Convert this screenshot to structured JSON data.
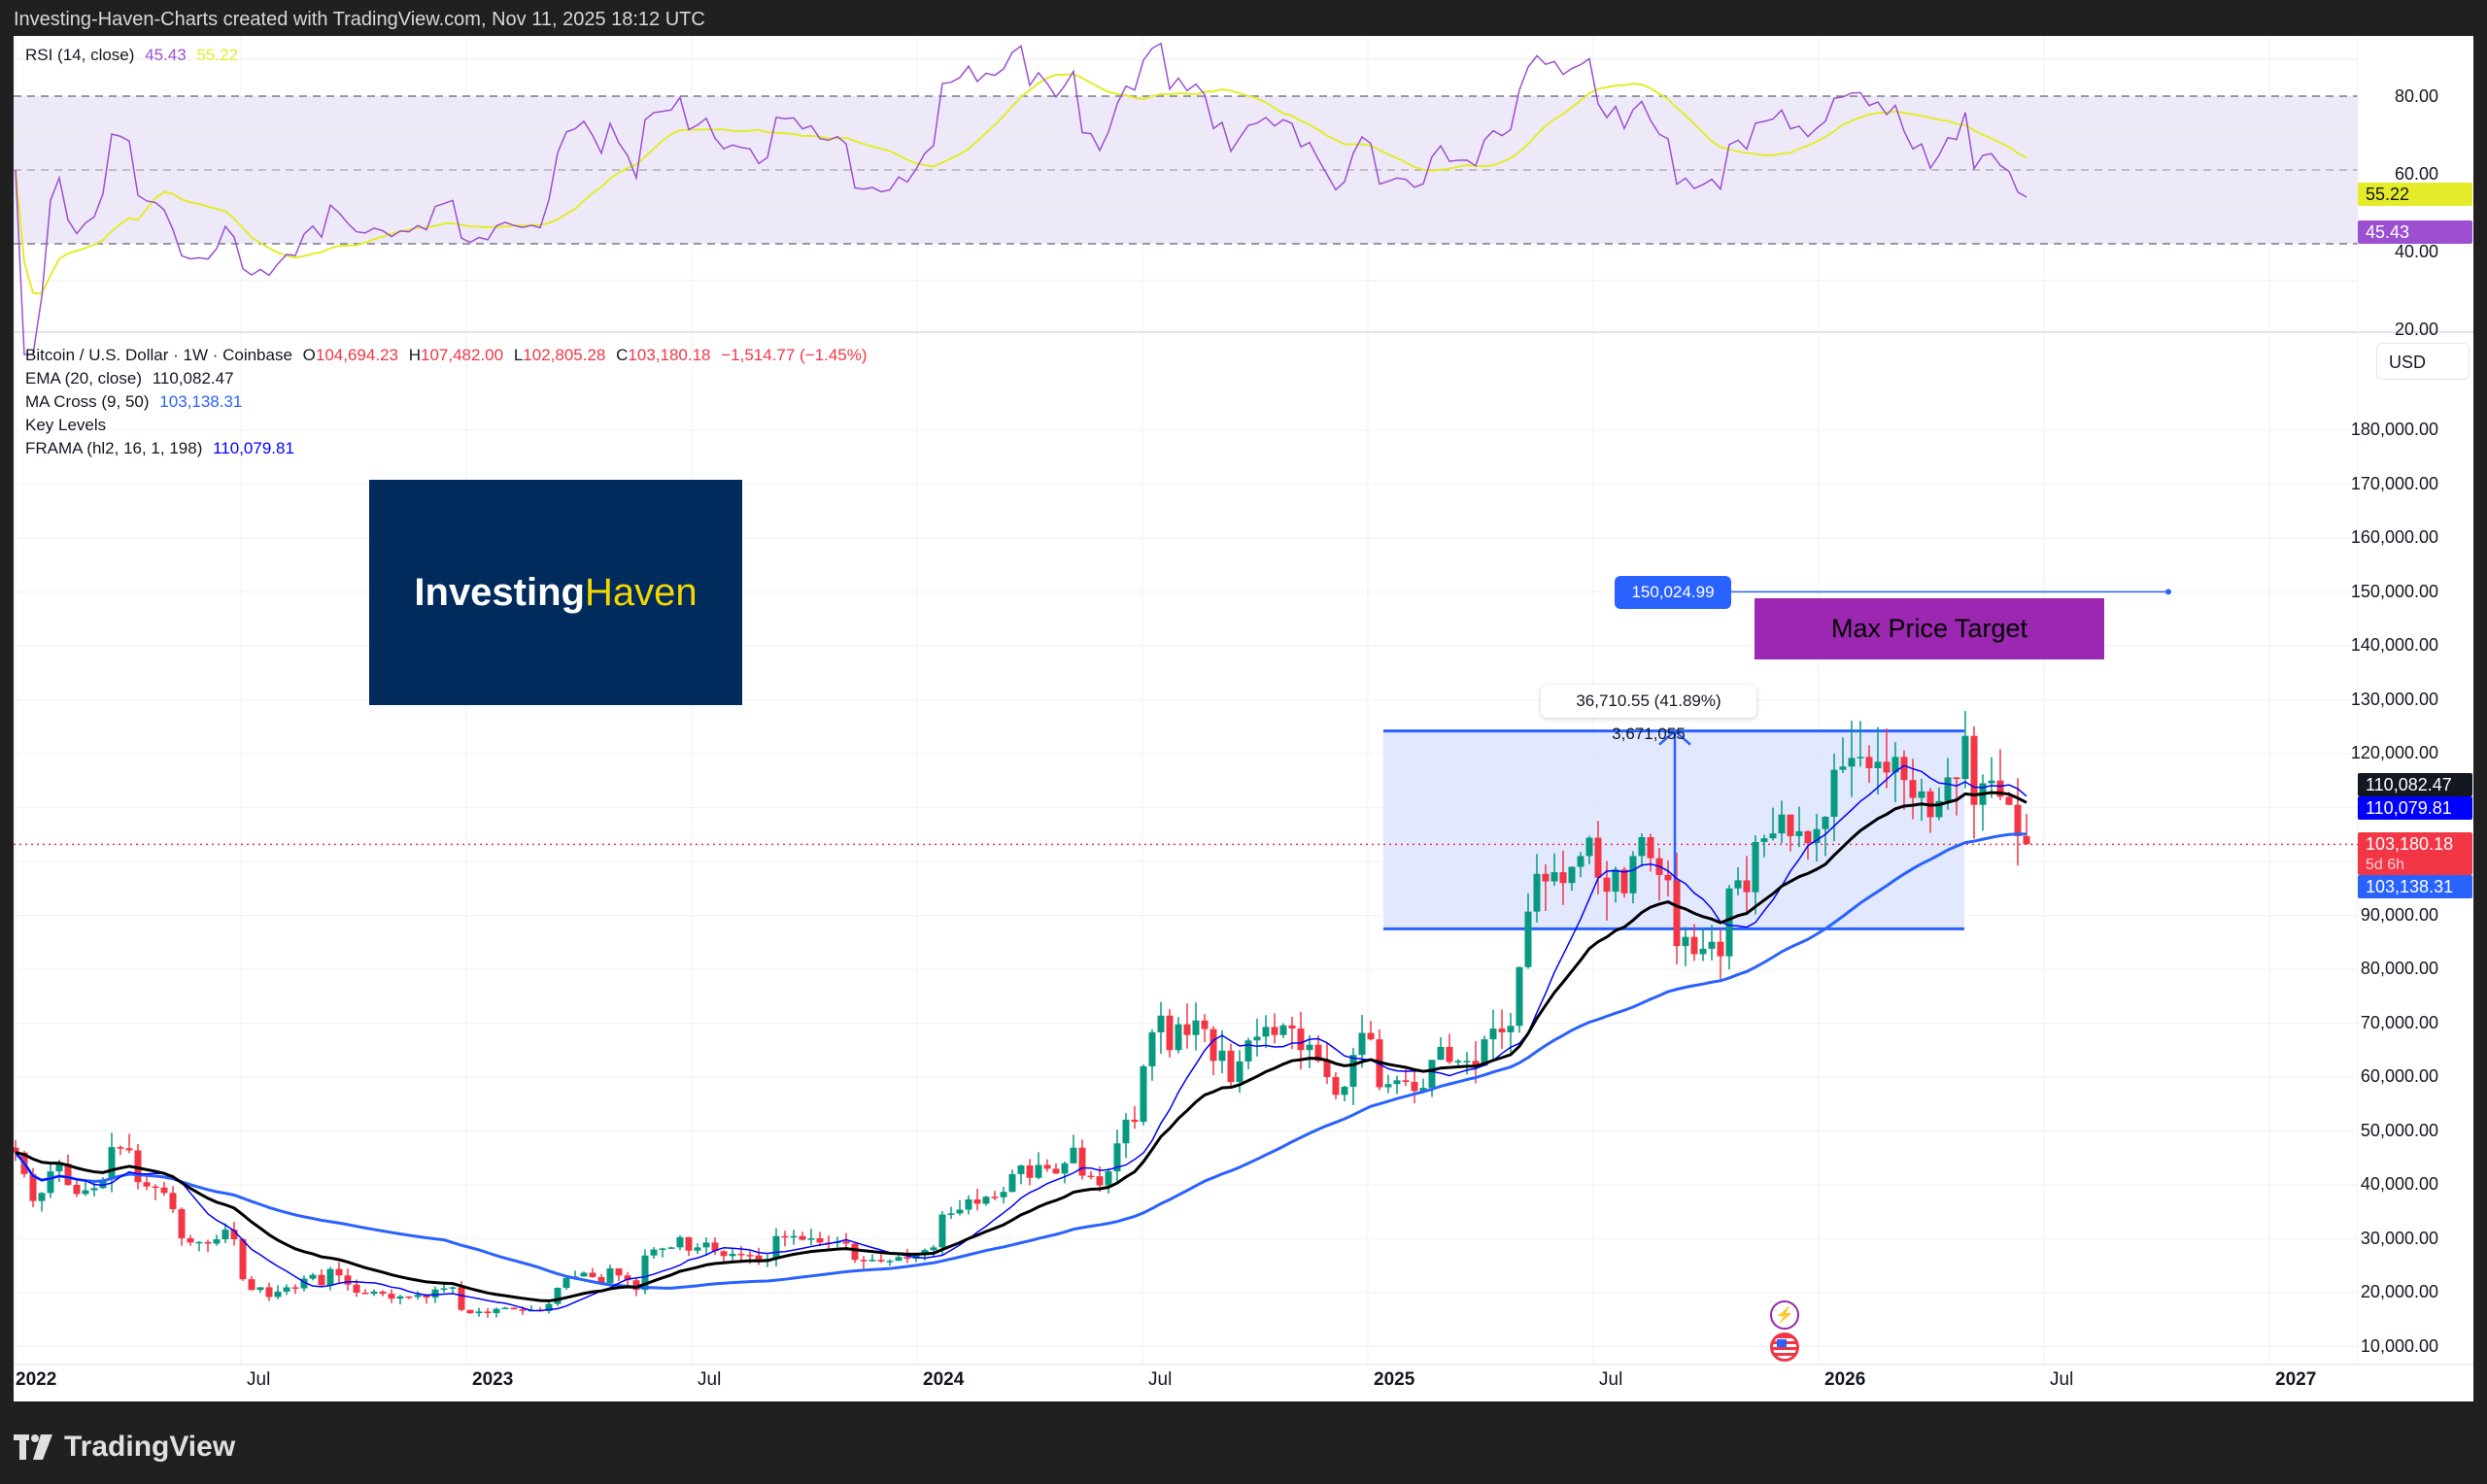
{
  "header": {
    "caption": "Investing-Haven-Charts created with TradingView.com, Nov 11, 2025 18:12 UTC"
  },
  "rsi_pane": {
    "legend_name": "RSI (14, close)",
    "rsi_value": "45.43",
    "rsi_ma_value": "55.22",
    "axis_ticks": [
      "80.00",
      "60.00",
      "40.00",
      "20.00"
    ],
    "tag_rsi": "45.43",
    "tag_ma": "55.22",
    "colors": {
      "rsi": "#9c4fd1",
      "ma": "#e4ec2a",
      "band": "#eee9f8"
    }
  },
  "price_pane": {
    "symbol": "Bitcoin / U.S. Dollar · 1W · Coinbase",
    "ohlc": {
      "o_label": "O",
      "o": "104,694.23",
      "h_label": "H",
      "h": "107,482.00",
      "l_label": "L",
      "l": "102,805.28",
      "c_label": "C",
      "c": "103,180.18",
      "change": "−1,514.77 (−1.45%)"
    },
    "indicators": [
      {
        "name": "EMA (20, close)",
        "value": "110,082.47"
      },
      {
        "name": "MA Cross (9, 50)",
        "value": "103,138.31"
      },
      {
        "name": "Key Levels",
        "value": ""
      },
      {
        "name": "FRAMA (hl2, 16, 1, 198)",
        "value": "110,079.81"
      }
    ],
    "currency": "USD",
    "axis_ticks": [
      "180,000.00",
      "170,000.00",
      "160,000.00",
      "150,000.00",
      "140,000.00",
      "130,000.00",
      "120,000.00",
      "90,000.00",
      "80,000.00",
      "70,000.00",
      "60,000.00",
      "50,000.00",
      "40,000.00",
      "30,000.00",
      "20,000.00",
      "10,000.00"
    ],
    "tags": {
      "ema": "110,082.47",
      "frama": "110,079.81",
      "last_price": "103,180.18",
      "countdown": "5d 6h",
      "ma_cross": "103,138.31"
    },
    "colors": {
      "up": "#089981",
      "down": "#f23645",
      "ema": "#000000",
      "ma50": "#2962ff",
      "frama": "#0000ff",
      "measure_fill": "#dfe6fd"
    }
  },
  "time_axis": [
    {
      "label": "2022",
      "year": true
    },
    {
      "label": "Jul",
      "year": false
    },
    {
      "label": "2023",
      "year": true
    },
    {
      "label": "Jul",
      "year": false
    },
    {
      "label": "2024",
      "year": true
    },
    {
      "label": "Jul",
      "year": false
    },
    {
      "label": "2025",
      "year": true
    },
    {
      "label": "Jul",
      "year": false
    },
    {
      "label": "2026",
      "year": true
    },
    {
      "label": "Jul",
      "year": false
    },
    {
      "label": "2027",
      "year": true
    }
  ],
  "annotations": {
    "logo_part1": "Investing",
    "logo_part2": "Haven",
    "target_price_label": "150,024.99",
    "max_price_target": "Max Price Target",
    "measure_label": "36,710.55 (41.89%) 3,671,055"
  },
  "footer": {
    "brand": "TradingView"
  },
  "chart_data": {
    "type": "candlestick",
    "title": "Bitcoin / U.S. Dollar · 1W · Coinbase",
    "xlabel": "",
    "ylabel": "USD",
    "ylim": [
      5000,
      185000
    ],
    "x_start": "2022-01-03",
    "interval": "1W",
    "closes": [
      46000,
      42000,
      37000,
      38500,
      42500,
      43900,
      40000,
      38300,
      39000,
      39400,
      41000,
      47000,
      46800,
      46400,
      40500,
      39700,
      39500,
      38500,
      35500,
      30100,
      29300,
      29400,
      29100,
      29900,
      31700,
      29900,
      22500,
      20500,
      21000,
      19200,
      20200,
      21000,
      20800,
      22600,
      23300,
      21400,
      24400,
      23200,
      21500,
      20000,
      19800,
      20200,
      19800,
      18900,
      19300,
      19200,
      19600,
      19100,
      20600,
      20800,
      21000,
      16800,
      16200,
      16500,
      16200,
      17000,
      17200,
      16900,
      16700,
      16800,
      16600,
      17900,
      20900,
      22700,
      23000,
      23700,
      22900,
      21800,
      24500,
      23200,
      22300,
      20500,
      26900,
      28000,
      28200,
      28400,
      30300,
      27800,
      28400,
      29300,
      27700,
      26800,
      27200,
      27000,
      26900,
      25800,
      26300,
      30500,
      30400,
      30500,
      29800,
      30100,
      29300,
      29200,
      29500,
      29100,
      26100,
      26000,
      26100,
      25800,
      25900,
      26600,
      26300,
      27000,
      27900,
      28400,
      34500,
      34700,
      35400,
      37300,
      36500,
      37800,
      37700,
      38700,
      42000,
      43600,
      41300,
      43700,
      43000,
      42100,
      44000,
      46900,
      41700,
      41600,
      39900,
      42500,
      47700,
      52100,
      51700,
      62000,
      68300,
      71400,
      65000,
      69800,
      67800,
      70500,
      68900,
      63000,
      64900,
      59100,
      62900,
      66800,
      67500,
      69300,
      67800,
      69600,
      69000,
      65000,
      66000,
      63000,
      60000,
      56700,
      58200,
      64100,
      68200,
      67000,
      58100,
      58700,
      59400,
      59100,
      57400,
      58000,
      63200,
      65600,
      62800,
      63000,
      63000,
      62100,
      67000,
      69000,
      68300,
      69500,
      80400,
      90700,
      97700,
      96300,
      98000,
      96000,
      99000,
      101000,
      104400,
      97000,
      94400,
      98500,
      94100,
      101000,
      104500,
      100600,
      97500,
      96500,
      84300,
      86000,
      82800,
      83800,
      85100,
      82400,
      95000,
      96500,
      94300,
      103600,
      104300,
      105200,
      108700,
      104700,
      105600,
      103400,
      106000,
      108300,
      117000,
      117600,
      119200,
      119400,
      117300,
      118500,
      116500,
      119400,
      115100,
      111800,
      113000,
      108200,
      111200,
      115600,
      115300,
      123300,
      110500,
      114500,
      115000,
      112000,
      110500,
      104700,
      103180
    ],
    "series": [
      {
        "name": "EMA (20, close)",
        "last": 110082.47
      },
      {
        "name": "MA Cross (9, 50)",
        "last": 103138.31
      },
      {
        "name": "FRAMA (hl2, 16, 1, 198)",
        "last": 110079.81
      },
      {
        "name": "RSI (14, close)",
        "last": 45.43
      },
      {
        "name": "RSI MA",
        "last": 55.22
      }
    ],
    "annotations": [
      {
        "type": "horizontal_ray",
        "price": 150024.99
      },
      {
        "type": "text_box",
        "text": "Max Price Target"
      },
      {
        "type": "price_range",
        "from": 87500,
        "to": 124210,
        "change": "36,710.55 (41.89%)",
        "ticks": "3,671,055"
      }
    ],
    "rsi_bands": {
      "upper": 70,
      "middle": 50,
      "lower": 30
    }
  }
}
